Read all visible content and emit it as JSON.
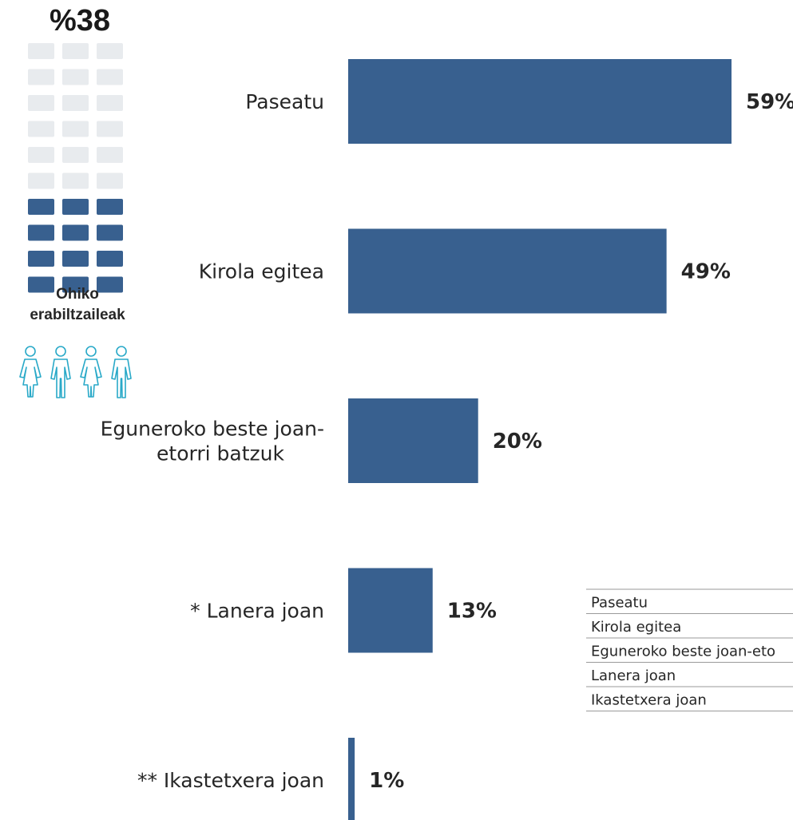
{
  "colors": {
    "bar": "#38608f",
    "waffle_empty": "#e8ebee",
    "people_icon": "#29a9c8",
    "table_line": "#9a9a9a"
  },
  "infographic": {
    "percent_label": "%38",
    "waffle_filled_rows": 4,
    "waffle_total_rows": 10,
    "waffle_columns": 3,
    "caption_line1": "Ohiko",
    "caption_line2": "erabiltzaileak",
    "icons": [
      "woman-icon",
      "man-icon",
      "woman-icon",
      "man-icon"
    ]
  },
  "chart_data": {
    "type": "bar",
    "orientation": "horizontal",
    "categories": [
      [
        "Paseatu"
      ],
      [
        "Kirola egitea"
      ],
      [
        "Egunerok​o beste joan-",
        "etorri batzuk"
      ],
      [
        "* Lanera joan"
      ],
      [
        "** Ikastetxera joan"
      ]
    ],
    "values": [
      59,
      49,
      20,
      13,
      1
    ],
    "value_labels": [
      "59%",
      "49%",
      "20%",
      "13%",
      "1%"
    ],
    "xlim": [
      0,
      59
    ],
    "grid": false,
    "legend": "none"
  },
  "legend_table": {
    "rows": [
      "Paseatu",
      "Kirola egitea",
      "Eguneroko beste joan-eto",
      "Lanera joan",
      "Ikastetxera joan"
    ]
  }
}
